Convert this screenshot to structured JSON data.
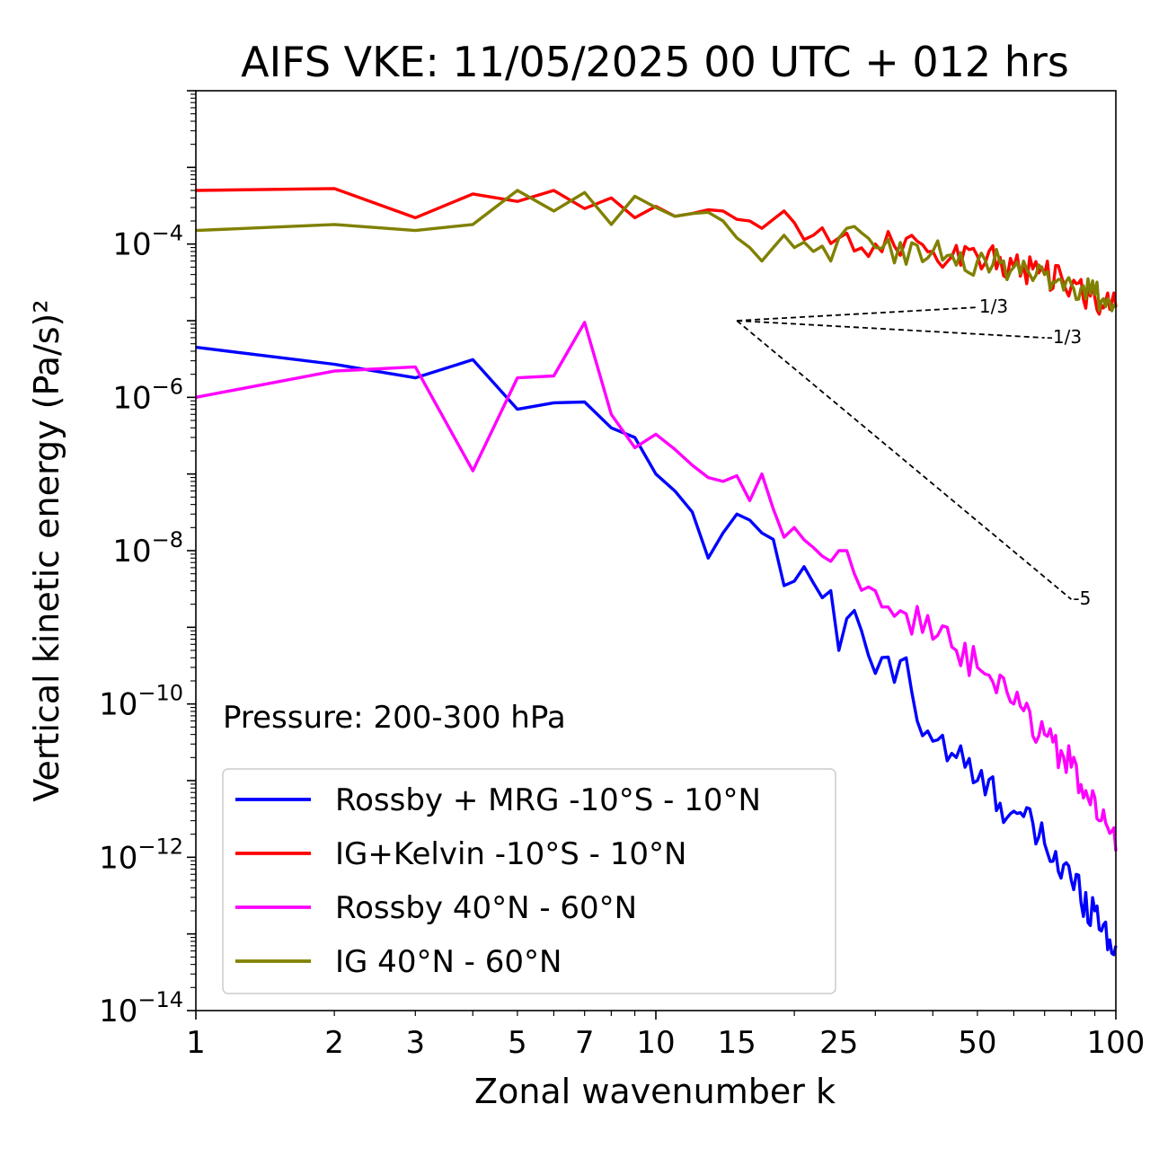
{
  "chart_data": {
    "type": "line",
    "title": "AIFS VKE: 11/05/2025 00 UTC + 012 hrs",
    "xlabel": "Zonal wavenumber k",
    "ylabel": "Vertical kinetic energy (Pa/s)²",
    "xscale": "log",
    "yscale": "log",
    "xlim": [
      1,
      100
    ],
    "ylim": [
      1e-14,
      0.01
    ],
    "x_ticks": [
      {
        "value": 1,
        "label": "1"
      },
      {
        "value": 2,
        "label": "2"
      },
      {
        "value": 3,
        "label": "3"
      },
      {
        "value": 5,
        "label": "5"
      },
      {
        "value": 7,
        "label": "7"
      },
      {
        "value": 10,
        "label": "10"
      },
      {
        "value": 15,
        "label": "15"
      },
      {
        "value": 25,
        "label": "25"
      },
      {
        "value": 50,
        "label": "50"
      },
      {
        "value": 100,
        "label": "100"
      }
    ],
    "y_ticks": [
      {
        "value": 0.0001,
        "base": "10",
        "exp": "−4"
      },
      {
        "value": 1e-06,
        "base": "10",
        "exp": "−6"
      },
      {
        "value": 1e-08,
        "base": "10",
        "exp": "−8"
      },
      {
        "value": 1e-10,
        "base": "10",
        "exp": "−10"
      },
      {
        "value": 1e-12,
        "base": "10",
        "exp": "−12"
      },
      {
        "value": 1e-14,
        "base": "10",
        "exp": "−14"
      }
    ],
    "annotation": "Pressure: 200-300 hPa",
    "grid": false,
    "legend_position": "lower-left",
    "series": [
      {
        "name": "Rossby + MRG -10°S - 10°N",
        "color": "#0000ff",
        "anchors": [
          [
            1,
            4.5e-06
          ],
          [
            2,
            2.7e-06
          ],
          [
            3,
            1.8e-06
          ],
          [
            4,
            3.1e-06
          ],
          [
            5,
            7e-07
          ],
          [
            6,
            8.5e-07
          ],
          [
            7,
            8.7e-07
          ],
          [
            8,
            4e-07
          ],
          [
            9,
            3e-07
          ],
          [
            10,
            1e-07
          ],
          [
            11,
            6e-08
          ],
          [
            12,
            3.2e-08
          ],
          [
            13,
            8e-09
          ],
          [
            14,
            1.7e-08
          ],
          [
            15,
            3e-08
          ],
          [
            16,
            2.5e-08
          ],
          [
            17,
            1.7e-08
          ],
          [
            18,
            1.4e-08
          ],
          [
            19,
            3.5e-09
          ],
          [
            20,
            4e-09
          ],
          [
            22,
            3.8e-09
          ],
          [
            24,
            3e-09
          ],
          [
            25,
            5e-10
          ],
          [
            26,
            1.3e-09
          ],
          [
            28,
            9e-10
          ],
          [
            30,
            2.5e-10
          ],
          [
            35,
            4e-10
          ],
          [
            37,
            6e-11
          ],
          [
            45,
            2e-11
          ],
          [
            50,
            1e-11
          ],
          [
            60,
            4e-12
          ],
          [
            70,
            1.5e-12
          ],
          [
            80,
            5e-13
          ],
          [
            90,
            2e-13
          ],
          [
            100,
            7e-14
          ]
        ],
        "noise": 0.55
      },
      {
        "name": "IG+Kelvin -10°S - 10°N",
        "color": "#ff0000",
        "anchors": [
          [
            1,
            0.0005
          ],
          [
            2,
            0.00053
          ],
          [
            3,
            0.00022
          ],
          [
            4,
            0.00045
          ],
          [
            5,
            0.00036
          ],
          [
            6,
            0.0005
          ],
          [
            7,
            0.00029
          ],
          [
            8,
            0.0004
          ],
          [
            9,
            0.00022
          ],
          [
            10,
            0.00031
          ],
          [
            11,
            0.00023
          ],
          [
            12,
            0.00025
          ],
          [
            13,
            0.00028
          ],
          [
            14,
            0.00027
          ],
          [
            15,
            0.00021
          ],
          [
            16,
            0.0002
          ],
          [
            17,
            0.00016
          ],
          [
            18,
            0.00021
          ],
          [
            19,
            0.00027
          ],
          [
            20,
            0.00019
          ],
          [
            22,
            0.00013
          ],
          [
            25,
            0.00012
          ],
          [
            30,
            0.0001
          ],
          [
            40,
            8e-05
          ],
          [
            50,
            7e-05
          ],
          [
            60,
            5e-05
          ],
          [
            70,
            4e-05
          ],
          [
            80,
            2.8e-05
          ],
          [
            90,
            2e-05
          ],
          [
            100,
            1.5e-05
          ]
        ],
        "noise": 0.4
      },
      {
        "name": "Rossby 40°N - 60°N",
        "color": "#ff00ff",
        "anchors": [
          [
            1,
            1e-06
          ],
          [
            2,
            2.2e-06
          ],
          [
            3,
            2.5e-06
          ],
          [
            4,
            1.1e-07
          ],
          [
            5,
            1.8e-06
          ],
          [
            6,
            1.9e-06
          ],
          [
            7,
            9.5e-06
          ],
          [
            8,
            6e-07
          ],
          [
            9,
            2.2e-07
          ],
          [
            10,
            3.3e-07
          ],
          [
            11,
            2.1e-07
          ],
          [
            12,
            1.3e-07
          ],
          [
            13,
            9e-08
          ],
          [
            14,
            8e-08
          ],
          [
            15,
            9.5e-08
          ],
          [
            16,
            4.5e-08
          ],
          [
            17,
            1e-07
          ],
          [
            18,
            3.5e-08
          ],
          [
            19,
            1.5e-08
          ],
          [
            20,
            2e-08
          ],
          [
            22,
            1.1e-08
          ],
          [
            25,
            1e-08
          ],
          [
            27,
            5e-09
          ],
          [
            30,
            3e-09
          ],
          [
            35,
            1.5e-09
          ],
          [
            40,
            7e-10
          ],
          [
            45,
            5e-10
          ],
          [
            50,
            3e-10
          ],
          [
            60,
            1e-10
          ],
          [
            70,
            4e-11
          ],
          [
            80,
            1.5e-11
          ],
          [
            90,
            6e-12
          ],
          [
            100,
            1.2e-12
          ]
        ],
        "noise": 0.5
      },
      {
        "name": "IG 40°N - 60°N",
        "color": "#808000",
        "anchors": [
          [
            1,
            0.00015
          ],
          [
            2,
            0.00018
          ],
          [
            3,
            0.00015
          ],
          [
            4,
            0.00018
          ],
          [
            5,
            0.0005
          ],
          [
            6,
            0.00027
          ],
          [
            7,
            0.00047
          ],
          [
            8,
            0.00018
          ],
          [
            9,
            0.00042
          ],
          [
            10,
            0.0003
          ],
          [
            11,
            0.00023
          ],
          [
            12,
            0.00025
          ],
          [
            13,
            0.00026
          ],
          [
            14,
            0.0002
          ],
          [
            15,
            0.00012
          ],
          [
            16,
            9e-05
          ],
          [
            17,
            6e-05
          ],
          [
            18,
            9e-05
          ],
          [
            19,
            0.00013
          ],
          [
            20,
            9e-05
          ],
          [
            22,
            8e-05
          ],
          [
            24,
            6e-05
          ],
          [
            25,
            0.00012
          ],
          [
            28,
            0.00014
          ],
          [
            30,
            9e-05
          ],
          [
            40,
            8e-05
          ],
          [
            50,
            6e-05
          ],
          [
            60,
            5e-05
          ],
          [
            70,
            4e-05
          ],
          [
            80,
            3e-05
          ],
          [
            90,
            2.2e-05
          ],
          [
            100,
            1.5e-05
          ]
        ],
        "noise": 0.4
      }
    ],
    "reference_slopes": [
      {
        "label": "1/3",
        "exponent": 0.3333,
        "x_start": 15,
        "x_end": 50,
        "y_start": 1e-05
      },
      {
        "label": "-1/3",
        "exponent": -0.3333,
        "x_start": 15,
        "x_end": 70,
        "y_start": 1e-05
      },
      {
        "label": "-5",
        "exponent": -5,
        "x_start": 15,
        "x_end": 80,
        "y_start": 1e-05
      }
    ]
  }
}
